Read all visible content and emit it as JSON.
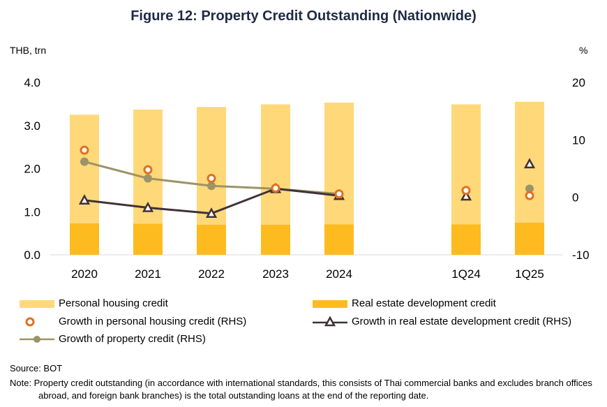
{
  "title": "Figure 12: Property Credit Outstanding (Nationwide)",
  "left_unit": "THB, trn",
  "right_unit": "%",
  "source": "Source: BOT",
  "note": "Note: Property credit outstanding (in accordance with international standards, this consists of Thai commercial banks and excludes branch offices abroad, and foreign bank branches) is the total outstanding loans at the end of the reporting date.",
  "legend": {
    "personal": "Personal housing credit",
    "developer": "Real estate development credit",
    "growth_personal": "Growth in personal housing credit (RHS)",
    "growth_developer": "Growth in real estate development credit (RHS)",
    "growth_property": "Growth of property credit (RHS)"
  },
  "colors": {
    "personal": "#FFD87A",
    "developer": "#FDBB1F",
    "growth_personal": "#E07020",
    "growth_developer": "#403137",
    "growth_property": "#9C9366"
  },
  "chart_data": {
    "type": "bar",
    "categories": [
      "2020",
      "2021",
      "2022",
      "2023",
      "2024",
      "1Q24",
      "1Q25"
    ],
    "stacked": true,
    "ylim_left": [
      0,
      4
    ],
    "yticks_left": [
      "0.0",
      "1.0",
      "2.0",
      "3.0",
      "4.0"
    ],
    "ylim_right": [
      -10,
      20
    ],
    "yticks_right": [
      "-10",
      "0",
      "10",
      "20"
    ],
    "series": [
      {
        "name": "Real estate development credit",
        "axis": "left",
        "kind": "bar",
        "values": [
          0.73,
          0.72,
          0.7,
          0.7,
          0.71,
          0.71,
          0.75
        ]
      },
      {
        "name": "Personal housing credit",
        "axis": "left",
        "kind": "bar",
        "values": [
          2.52,
          2.65,
          2.73,
          2.79,
          2.82,
          2.78,
          2.8
        ]
      },
      {
        "name": "Growth in personal housing credit (RHS)",
        "axis": "right",
        "kind": "marker",
        "values": [
          8.2,
          4.8,
          3.3,
          1.6,
          0.6,
          1.2,
          0.3
        ]
      },
      {
        "name": "Growth in real estate development credit (RHS)",
        "axis": "right",
        "kind": "line-triangle",
        "values": [
          -0.5,
          -1.8,
          -2.8,
          1.5,
          0.3,
          0.2,
          5.8
        ]
      },
      {
        "name": "Growth of property credit (RHS)",
        "axis": "right",
        "kind": "line-dot",
        "values": [
          6.2,
          3.3,
          2.0,
          1.5,
          0.6,
          null,
          1.5
        ]
      }
    ],
    "legend_position": "bottom",
    "grid": false
  }
}
